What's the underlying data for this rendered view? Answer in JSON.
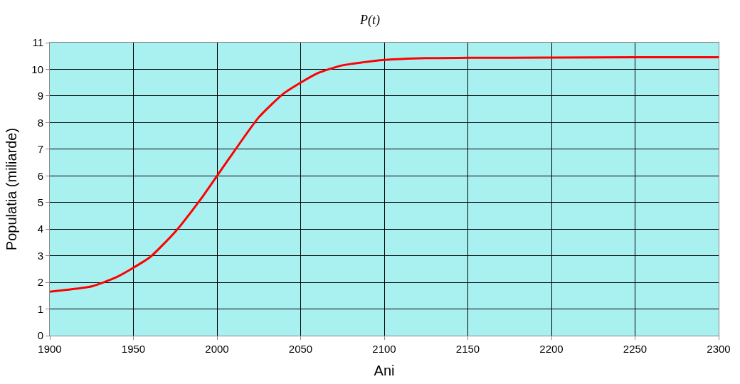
{
  "chart_data": {
    "type": "line",
    "title": "P(t)",
    "xlabel": "Ani",
    "ylabel": "Populatia (miliarde)",
    "x": [
      1900,
      1910,
      1925,
      1940,
      1950,
      1960,
      1975,
      1990,
      2000,
      2010,
      2025,
      2040,
      2050,
      2060,
      2075,
      2100,
      2125,
      2150,
      2200,
      2250,
      2300
    ],
    "series": [
      {
        "color": "#ff0000",
        "values": [
          1.65,
          1.72,
          1.85,
          2.2,
          2.55,
          2.95,
          3.9,
          5.1,
          6.0,
          6.9,
          8.2,
          9.1,
          9.5,
          9.85,
          10.15,
          10.35,
          10.42,
          10.43,
          10.44,
          10.45,
          10.45
        ]
      }
    ],
    "xlim": [
      1900,
      2300
    ],
    "xticks": [
      1900,
      1950,
      2000,
      2050,
      2100,
      2150,
      2200,
      2250,
      2300
    ],
    "ylim": [
      0,
      11
    ],
    "yticks": [
      0,
      1,
      2,
      3,
      4,
      5,
      6,
      7,
      8,
      9,
      10,
      11
    ],
    "grid": true,
    "marker": "none",
    "line_style": "solid"
  }
}
